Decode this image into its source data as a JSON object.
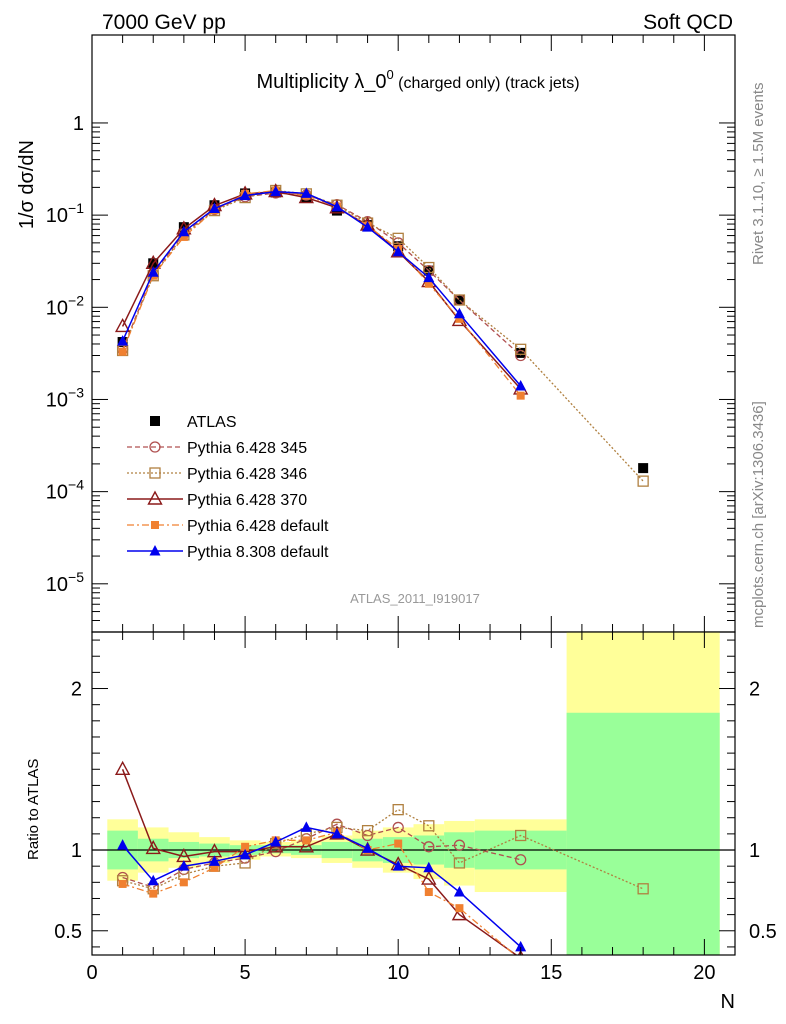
{
  "header": {
    "left": "7000 GeV pp",
    "right": "Soft QCD"
  },
  "side_labels": {
    "rivet": "Rivet 3.1.10, ≥ 1.5M events",
    "mcplots": "mcplots.cern.ch [arXiv:1306.3436]"
  },
  "colors": {
    "ATLAS": "#000000",
    "Pythia 6.428 345": "#b05050",
    "Pythia 6.428 346": "#b08040",
    "Pythia 6.428 370": "#8b1a1a",
    "Pythia 6.428 default": "#f08030",
    "Pythia 8.308 default": "#0000ee",
    "band_green": "#99ff99",
    "band_yellow": "#ffff99"
  },
  "chart_data": [
    {
      "type": "line",
      "title": "Multiplicity λ_0",
      "title_superscript": "0",
      "title_suffix": " (charged only) (track jets)",
      "ylabel": "1/σ dσ/dN",
      "xlabel": "",
      "yscale": "log",
      "xlim": [
        0,
        21
      ],
      "ylim": [
        3e-06,
        9
      ],
      "yticks": [
        {
          "value": 1,
          "base": "1",
          "exp": ""
        },
        {
          "value": 0.1,
          "base": "10",
          "exp": "−1"
        },
        {
          "value": 0.01,
          "base": "10",
          "exp": "−2"
        },
        {
          "value": 0.001,
          "base": "10",
          "exp": "−3"
        },
        {
          "value": 0.0001,
          "base": "10",
          "exp": "−4"
        },
        {
          "value": 1e-05,
          "base": "10",
          "exp": "−5"
        }
      ],
      "legend_position": "bottom-left",
      "analysis_label": "ATLAS_2011_I919017",
      "series": [
        {
          "name": "ATLAS",
          "x": [
            1,
            2,
            3,
            4,
            5,
            6,
            7,
            8,
            9,
            10,
            11,
            12,
            14,
            18
          ],
          "y": [
            0.0042,
            0.03,
            0.074,
            0.128,
            0.172,
            0.176,
            0.155,
            0.112,
            0.078,
            0.046,
            0.025,
            0.012,
            0.0032,
            0.00018
          ]
        },
        {
          "name": "Pythia 6.428 345",
          "x": [
            1,
            2,
            3,
            4,
            5,
            6,
            7,
            8,
            9,
            10,
            11,
            12,
            14
          ],
          "y": [
            0.0035,
            0.023,
            0.063,
            0.115,
            0.158,
            0.174,
            0.165,
            0.13,
            0.085,
            0.05,
            0.025,
            0.012,
            0.003
          ]
        },
        {
          "name": "Pythia 6.428 346",
          "x": [
            1,
            2,
            3,
            4,
            5,
            6,
            7,
            8,
            9,
            10,
            11,
            12,
            14,
            18
          ],
          "y": [
            0.0034,
            0.022,
            0.061,
            0.112,
            0.155,
            0.185,
            0.17,
            0.128,
            0.082,
            0.056,
            0.027,
            0.012,
            0.0035,
            0.00013
          ]
        },
        {
          "name": "Pythia 6.428 370",
          "x": [
            1,
            2,
            3,
            4,
            5,
            6,
            7,
            8,
            9,
            10,
            11,
            12,
            14
          ],
          "y": [
            0.0062,
            0.03,
            0.071,
            0.127,
            0.17,
            0.18,
            0.155,
            0.12,
            0.078,
            0.04,
            0.019,
            0.0072,
            0.0013
          ]
        },
        {
          "name": "Pythia 6.428 default",
          "x": [
            1,
            2,
            3,
            4,
            5,
            6,
            7,
            8,
            9,
            10,
            11,
            12,
            14
          ],
          "y": [
            0.0033,
            0.022,
            0.058,
            0.113,
            0.17,
            0.185,
            0.163,
            0.124,
            0.077,
            0.043,
            0.018,
            0.0075,
            0.0011
          ]
        },
        {
          "name": "Pythia 8.308 default",
          "x": [
            1,
            2,
            3,
            4,
            5,
            6,
            7,
            8,
            9,
            10,
            11,
            12,
            14
          ],
          "y": [
            0.0043,
            0.024,
            0.066,
            0.118,
            0.163,
            0.18,
            0.172,
            0.123,
            0.074,
            0.04,
            0.021,
            0.0085,
            0.0014
          ]
        }
      ]
    },
    {
      "type": "line",
      "title": "",
      "ylabel": "Ratio to ATLAS",
      "xlabel": "N",
      "xlim": [
        0,
        21
      ],
      "ylim": [
        0.35,
        2.35
      ],
      "yticks": [
        0.5,
        1,
        2
      ],
      "xticks": [
        0,
        5,
        10,
        15,
        20
      ],
      "bands": {
        "edges": [
          0.5,
          1.5,
          2.5,
          3.5,
          4.5,
          5.5,
          6.5,
          7.5,
          8.5,
          9.5,
          10.5,
          11.5,
          12.5,
          15.5,
          20.5
        ],
        "green_low": [
          0.88,
          0.93,
          0.95,
          0.96,
          0.97,
          0.98,
          0.97,
          0.95,
          0.93,
          0.92,
          0.91,
          0.89,
          0.88,
          0.0
        ],
        "green_high": [
          1.12,
          1.07,
          1.05,
          1.04,
          1.03,
          1.03,
          1.03,
          1.05,
          1.07,
          1.08,
          1.09,
          1.11,
          1.12,
          1.85
        ],
        "yellow_low": [
          0.81,
          0.86,
          0.89,
          0.92,
          0.94,
          0.96,
          0.95,
          0.92,
          0.89,
          0.86,
          0.82,
          0.78,
          0.74,
          0.0
        ],
        "yellow_high": [
          1.19,
          1.14,
          1.11,
          1.08,
          1.06,
          1.05,
          1.06,
          1.09,
          1.12,
          1.14,
          1.16,
          1.18,
          1.19,
          2.35
        ]
      },
      "series": [
        {
          "name": "Pythia 6.428 345",
          "x": [
            1,
            2,
            3,
            4,
            5,
            6,
            7,
            8,
            9,
            10,
            11,
            12,
            14
          ],
          "y": [
            0.83,
            0.77,
            0.88,
            0.92,
            0.95,
            0.99,
            1.07,
            1.16,
            1.09,
            1.14,
            1.02,
            1.03,
            0.94
          ]
        },
        {
          "name": "Pythia 6.428 346",
          "x": [
            1,
            2,
            3,
            4,
            5,
            6,
            7,
            8,
            9,
            10,
            11,
            12,
            14,
            18
          ],
          "y": [
            0.81,
            0.76,
            0.85,
            0.9,
            0.92,
            1.04,
            1.1,
            1.14,
            1.12,
            1.25,
            1.15,
            0.92,
            1.09,
            0.76
          ]
        },
        {
          "name": "Pythia 6.428 370",
          "x": [
            1,
            2,
            3,
            4,
            5,
            6,
            7,
            8,
            9,
            10,
            11,
            12,
            14
          ],
          "y": [
            1.5,
            1.01,
            0.96,
            0.99,
            0.99,
            1.02,
            1.02,
            1.1,
            1.0,
            0.91,
            0.82,
            0.6,
            0.33
          ]
        },
        {
          "name": "Pythia 6.428 default",
          "x": [
            1,
            2,
            3,
            4,
            5,
            6,
            7,
            8,
            9,
            10,
            11,
            12,
            14
          ],
          "y": [
            0.79,
            0.73,
            0.8,
            0.89,
            1.02,
            1.06,
            1.06,
            1.11,
            1.0,
            1.04,
            0.74,
            0.64,
            0.32
          ]
        },
        {
          "name": "Pythia 8.308 default",
          "x": [
            1,
            2,
            3,
            4,
            5,
            6,
            7,
            8,
            9,
            10,
            11,
            12,
            14
          ],
          "y": [
            1.03,
            0.81,
            0.9,
            0.93,
            0.97,
            1.05,
            1.14,
            1.1,
            1.01,
            0.9,
            0.89,
            0.74,
            0.4
          ]
        }
      ]
    }
  ]
}
